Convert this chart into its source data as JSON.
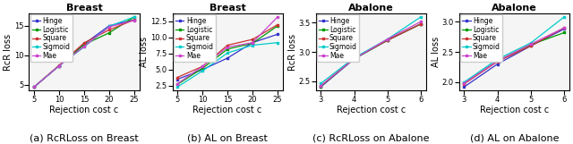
{
  "breast_rcr": {
    "title": "Breast",
    "xlabel": "Rejection cost c",
    "ylabel": "RcR loss",
    "x": [
      5,
      10,
      15,
      20,
      25
    ],
    "lines": {
      "Hinge": [
        4.6,
        8.2,
        11.9,
        15.0,
        16.0
      ],
      "Logistic": [
        4.6,
        8.2,
        11.8,
        13.8,
        16.5
      ],
      "Square": [
        4.6,
        8.3,
        12.1,
        14.3,
        16.0
      ],
      "Sigmoid": [
        4.6,
        8.2,
        11.4,
        14.9,
        16.5
      ],
      "Mae": [
        4.6,
        8.2,
        11.5,
        14.8,
        15.9
      ]
    },
    "colors": {
      "Hinge": "#3333cc",
      "Logistic": "#009900",
      "Square": "#cc3333",
      "Sigmoid": "#00cccc",
      "Mae": "#cc44cc"
    },
    "caption": "(a) RcRLoss on Breast"
  },
  "breast_al": {
    "title": "Breast",
    "xlabel": "Rejection cost c",
    "ylabel": "AL loss",
    "x": [
      5,
      10,
      15,
      20,
      25
    ],
    "lines": {
      "Hinge": [
        3.5,
        5.0,
        6.8,
        9.2,
        10.5
      ],
      "Logistic": [
        2.7,
        5.2,
        8.2,
        9.1,
        11.8
      ],
      "Square": [
        3.8,
        5.5,
        8.8,
        9.7,
        12.0
      ],
      "Sigmoid": [
        2.3,
        4.8,
        7.6,
        8.8,
        9.2
      ],
      "Mae": [
        2.8,
        5.5,
        8.5,
        9.2,
        13.2
      ]
    },
    "colors": {
      "Hinge": "#3333cc",
      "Logistic": "#009900",
      "Square": "#cc3333",
      "Sigmoid": "#00cccc",
      "Mae": "#cc44cc"
    },
    "caption": "(b) AL on Breast"
  },
  "abalone_rcr": {
    "title": "Abalone",
    "xlabel": "Rejection cost c",
    "ylabel": "RcR loss",
    "x": [
      3,
      4,
      5,
      6
    ],
    "lines": {
      "Hinge": [
        2.4,
        2.88,
        3.2,
        3.48
      ],
      "Logistic": [
        2.41,
        2.88,
        3.2,
        3.48
      ],
      "Square": [
        2.42,
        2.89,
        3.2,
        3.48
      ],
      "Sigmoid": [
        2.46,
        2.9,
        3.22,
        3.6
      ],
      "Mae": [
        2.42,
        2.88,
        3.22,
        3.52
      ]
    },
    "colors": {
      "Hinge": "#3333cc",
      "Logistic": "#009900",
      "Square": "#cc3333",
      "Sigmoid": "#00cccc",
      "Mae": "#cc44cc"
    },
    "caption": "(c) RcRLoss on Abalone"
  },
  "abalone_al": {
    "title": "Abalone",
    "xlabel": "Rejection cost c",
    "ylabel": "AL loss",
    "x": [
      3,
      4,
      5,
      6
    ],
    "lines": {
      "Hinge": [
        1.92,
        2.3,
        2.6,
        2.88
      ],
      "Logistic": [
        1.98,
        2.35,
        2.62,
        2.82
      ],
      "Square": [
        1.97,
        2.34,
        2.6,
        2.9
      ],
      "Sigmoid": [
        2.0,
        2.38,
        2.65,
        3.08
      ],
      "Mae": [
        1.98,
        2.35,
        2.63,
        2.9
      ]
    },
    "colors": {
      "Hinge": "#3333cc",
      "Logistic": "#009900",
      "Square": "#cc3333",
      "Sigmoid": "#00cccc",
      "Mae": "#cc44cc"
    },
    "caption": "(d) AL on Abalone"
  },
  "caption_fontsize": 8,
  "title_fontsize": 8,
  "axis_label_fontsize": 7,
  "tick_fontsize": 6,
  "legend_fontsize": 5.5,
  "marker": "s",
  "markersize": 2.0,
  "linewidth": 0.9
}
